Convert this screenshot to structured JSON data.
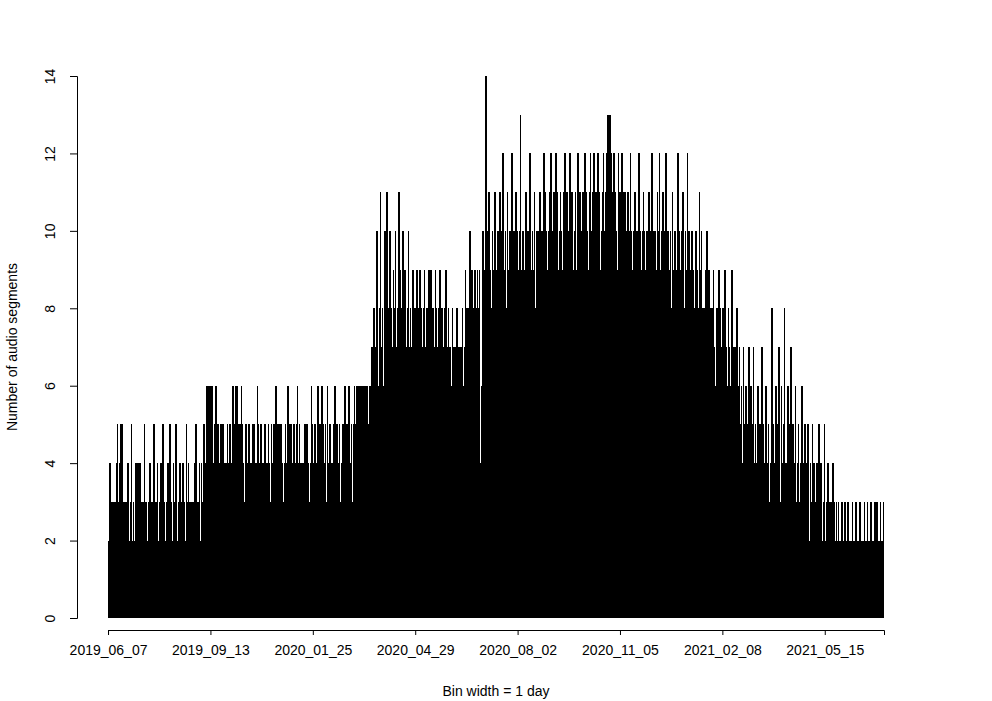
{
  "chart_data": {
    "type": "bar",
    "xlabel": "Bin width = 1 day",
    "ylabel": "Number of audio segments",
    "color": "#000000",
    "ylim": [
      0,
      14
    ],
    "yticks": [
      0,
      2,
      4,
      6,
      8,
      10,
      12,
      14
    ],
    "categories": [
      "2019_06_07",
      null,
      null,
      null,
      null,
      null,
      null,
      null,
      null,
      null,
      null,
      null,
      null,
      null,
      null,
      null,
      null,
      null,
      null,
      null,
      null,
      null,
      null,
      null,
      null,
      null,
      null,
      null,
      null,
      null,
      null,
      null,
      null,
      null,
      null,
      null,
      null,
      null,
      null,
      null,
      null,
      null,
      null,
      null,
      null,
      null,
      null,
      null,
      null,
      null,
      null,
      null,
      null,
      null,
      null,
      null,
      null,
      null,
      null,
      null,
      null,
      null,
      null,
      null,
      null,
      null,
      null,
      null,
      null,
      null,
      null,
      null,
      null,
      null,
      null,
      null,
      null,
      null,
      null,
      null,
      null,
      null,
      null,
      null,
      null,
      null,
      null,
      null,
      null,
      null,
      null,
      null,
      null,
      null,
      null,
      "2019_09_13",
      null,
      null,
      null,
      null,
      null,
      null,
      null,
      null,
      null,
      null,
      null,
      null,
      null,
      null,
      null,
      null,
      null,
      null,
      null,
      null,
      null,
      null,
      null,
      null,
      null,
      null,
      null,
      null,
      null,
      null,
      null,
      null,
      null,
      null,
      null,
      null,
      null,
      null,
      null,
      null,
      null,
      null,
      null,
      null,
      null,
      null,
      null,
      null,
      null,
      null,
      null,
      null,
      null,
      null,
      null,
      null,
      null,
      null,
      null,
      null,
      null,
      null,
      null,
      null,
      null,
      null,
      null,
      null,
      null,
      null,
      null,
      null,
      null,
      null,
      null,
      null,
      null,
      null,
      null,
      null,
      null,
      null,
      null,
      null,
      null,
      null,
      null,
      null,
      null,
      null,
      null,
      null,
      null,
      null,
      "2020_01_25",
      null,
      null,
      null,
      null,
      null,
      null,
      null,
      null,
      null,
      null,
      null,
      null,
      null,
      null,
      null,
      null,
      null,
      null,
      null,
      null,
      null,
      null,
      null,
      null,
      null,
      null,
      null,
      null,
      null,
      null,
      null,
      null,
      null,
      null,
      null,
      null,
      null,
      null,
      null,
      null,
      null,
      null,
      null,
      null,
      null,
      null,
      null,
      null,
      null,
      null,
      null,
      null,
      null,
      null,
      null,
      null,
      null,
      null,
      null,
      null,
      null,
      null,
      null,
      null,
      null,
      null,
      null,
      null,
      null,
      null,
      null,
      null,
      null,
      null,
      null,
      null,
      null,
      null,
      null,
      null,
      null,
      null,
      null,
      null,
      null,
      null,
      null,
      null,
      null,
      null,
      null,
      null,
      null,
      null,
      "2020_04_29",
      null,
      null,
      null,
      null,
      null,
      null,
      null,
      null,
      null,
      null,
      null,
      null,
      null,
      null,
      null,
      null,
      null,
      null,
      null,
      null,
      null,
      null,
      null,
      null,
      null,
      null,
      null,
      null,
      null,
      null,
      null,
      null,
      null,
      null,
      null,
      null,
      null,
      null,
      null,
      null,
      null,
      null,
      null,
      null,
      null,
      null,
      null,
      null,
      null,
      null,
      null,
      null,
      null,
      null,
      null,
      null,
      null,
      null,
      null,
      null,
      null,
      null,
      null,
      null,
      null,
      null,
      null,
      null,
      null,
      null,
      null,
      null,
      null,
      null,
      null,
      null,
      null,
      null,
      null,
      null,
      null,
      null,
      null,
      null,
      null,
      null,
      null,
      null,
      null,
      null,
      null,
      null,
      null,
      null,
      "2020_08_02",
      null,
      null,
      null,
      null,
      null,
      null,
      null,
      null,
      null,
      null,
      null,
      null,
      null,
      null,
      null,
      null,
      null,
      null,
      null,
      null,
      null,
      null,
      null,
      null,
      null,
      null,
      null,
      null,
      null,
      null,
      null,
      null,
      null,
      null,
      null,
      null,
      null,
      null,
      null,
      null,
      null,
      null,
      null,
      null,
      null,
      null,
      null,
      null,
      null,
      null,
      null,
      null,
      null,
      null,
      null,
      null,
      null,
      null,
      null,
      null,
      null,
      null,
      null,
      null,
      null,
      null,
      null,
      null,
      null,
      null,
      null,
      null,
      null,
      null,
      null,
      null,
      null,
      null,
      null,
      null,
      null,
      null,
      null,
      null,
      null,
      null,
      null,
      null,
      null,
      null,
      null,
      null,
      null,
      null,
      "2020_11_05",
      null,
      null,
      null,
      null,
      null,
      null,
      null,
      null,
      null,
      null,
      null,
      null,
      null,
      null,
      null,
      null,
      null,
      null,
      null,
      null,
      null,
      null,
      null,
      null,
      null,
      null,
      null,
      null,
      null,
      null,
      null,
      null,
      null,
      null,
      null,
      null,
      null,
      null,
      null,
      null,
      null,
      null,
      null,
      null,
      null,
      null,
      null,
      null,
      null,
      null,
      null,
      null,
      null,
      null,
      null,
      null,
      null,
      null,
      null,
      null,
      null,
      null,
      null,
      null,
      null,
      null,
      null,
      null,
      null,
      null,
      null,
      null,
      null,
      null,
      null,
      null,
      null,
      null,
      null,
      null,
      null,
      null,
      null,
      null,
      null,
      null,
      null,
      null,
      null,
      null,
      null,
      null,
      null,
      null,
      "2021_02_08",
      null,
      null,
      null,
      null,
      null,
      null,
      null,
      null,
      null,
      null,
      null,
      null,
      null,
      null,
      null,
      null,
      null,
      null,
      null,
      null,
      null,
      null,
      null,
      null,
      null,
      null,
      null,
      null,
      null,
      null,
      null,
      null,
      null,
      null,
      null,
      null,
      null,
      null,
      null,
      null,
      null,
      null,
      null,
      null,
      null,
      null,
      null,
      null,
      null,
      null,
      null,
      null,
      null,
      null,
      null,
      null,
      null,
      null,
      null,
      null,
      null,
      null,
      null,
      null,
      null,
      null,
      null,
      null,
      null,
      null,
      null,
      null,
      null,
      null,
      null,
      null,
      null,
      null,
      null,
      null,
      null,
      null,
      null,
      null,
      null,
      null,
      null,
      null,
      null,
      null,
      null,
      null,
      null,
      null,
      "2021_05_15",
      null,
      null,
      null,
      null,
      null,
      null,
      null,
      null,
      null,
      null,
      null,
      null,
      null,
      null,
      null,
      null,
      null,
      null,
      null,
      null,
      null,
      null,
      null,
      null,
      null,
      null,
      null,
      null,
      null,
      null,
      null,
      null,
      null,
      null,
      null,
      null,
      null,
      null,
      null,
      null,
      null,
      null,
      null,
      null,
      null,
      null,
      null,
      null,
      null,
      null,
      null,
      null,
      null,
      null
    ],
    "values": [
      2,
      4,
      3,
      3,
      3,
      2,
      3,
      4,
      5,
      3,
      4,
      5,
      5,
      3,
      2,
      3,
      2,
      3,
      4,
      2,
      3,
      5,
      2,
      3,
      2,
      4,
      3,
      4,
      2,
      4,
      3,
      1,
      3,
      5,
      3,
      3,
      2,
      3,
      4,
      1,
      3,
      3,
      5,
      2,
      3,
      4,
      2,
      3,
      4,
      4,
      5,
      3,
      1,
      2,
      3,
      4,
      2,
      5,
      3,
      2,
      4,
      3,
      5,
      2,
      1,
      3,
      4,
      3,
      2,
      4,
      3,
      2,
      5,
      3,
      4,
      3,
      1,
      3,
      2,
      3,
      4,
      5,
      3,
      3,
      4,
      2,
      4,
      3,
      5,
      4,
      4,
      6,
      5,
      6,
      6,
      5,
      6,
      4,
      5,
      6,
      6,
      5,
      4,
      3,
      5,
      4,
      5,
      4,
      3,
      4,
      5,
      4,
      5,
      5,
      4,
      6,
      5,
      4,
      6,
      6,
      5,
      4,
      5,
      6,
      5,
      4,
      3,
      5,
      4,
      4,
      5,
      4,
      3,
      4,
      5,
      5,
      4,
      4,
      6,
      5,
      4,
      5,
      4,
      3,
      4,
      5,
      2,
      4,
      5,
      4,
      3,
      5,
      4,
      5,
      4,
      6,
      5,
      4,
      5,
      4,
      5,
      4,
      3,
      4,
      5,
      4,
      6,
      5,
      4,
      5,
      4,
      3,
      5,
      4,
      5,
      6,
      4,
      5,
      4,
      4,
      3,
      4,
      5,
      4,
      5,
      4,
      3,
      4,
      6,
      5,
      4,
      5,
      4,
      3,
      6,
      5,
      4,
      5,
      6,
      5,
      4,
      5,
      3,
      6,
      4,
      5,
      4,
      3,
      4,
      5,
      6,
      4,
      5,
      4,
      5,
      3,
      4,
      5,
      4,
      6,
      5,
      4,
      5,
      6,
      4,
      5,
      3,
      5,
      6,
      5,
      6,
      4,
      6,
      5,
      6,
      6,
      5,
      6,
      6,
      6,
      6,
      5,
      6,
      6,
      7,
      6,
      8,
      6,
      7,
      10,
      6,
      8,
      11,
      7,
      8,
      6,
      10,
      7,
      11,
      8,
      7,
      10,
      8,
      7,
      9,
      8,
      10,
      7,
      8,
      11,
      9,
      8,
      7,
      10,
      8,
      9,
      7,
      8,
      10,
      7,
      8,
      7,
      9,
      8,
      7,
      8,
      9,
      7,
      8,
      9,
      8,
      7,
      8,
      9,
      7,
      8,
      7,
      9,
      8,
      9,
      7,
      8,
      7,
      9,
      8,
      7,
      8,
      9,
      7,
      8,
      7,
      7,
      8,
      9,
      7,
      8,
      7,
      7,
      6,
      8,
      7,
      6,
      7,
      8,
      7,
      6,
      7,
      7,
      8,
      6,
      7,
      9,
      8,
      7,
      8,
      10,
      8,
      9,
      8,
      8,
      9,
      8,
      9,
      8,
      9,
      4,
      6,
      10,
      8,
      9,
      14,
      8,
      10,
      11,
      9,
      8,
      10,
      9,
      11,
      8,
      9,
      10,
      8,
      11,
      9,
      10,
      12,
      9,
      10,
      8,
      11,
      9,
      10,
      9,
      12,
      8,
      10,
      9,
      11,
      10,
      9,
      10,
      13,
      9,
      10,
      8,
      9,
      11,
      10,
      9,
      10,
      12,
      9,
      10,
      9,
      11,
      8,
      10,
      9,
      10,
      11,
      9,
      10,
      10,
      12,
      11,
      10,
      9,
      10,
      11,
      12,
      10,
      9,
      11,
      10,
      12,
      11,
      9,
      10,
      11,
      10,
      9,
      11,
      12,
      10,
      11,
      9,
      10,
      12,
      10,
      11,
      9,
      10,
      11,
      9,
      12,
      10,
      11,
      10,
      9,
      11,
      10,
      12,
      11,
      10,
      9,
      11,
      12,
      10,
      11,
      12,
      10,
      11,
      10,
      12,
      11,
      9,
      10,
      11,
      12,
      10,
      11,
      12,
      13,
      11,
      13,
      12,
      11,
      10,
      12,
      11,
      10,
      9,
      12,
      11,
      10,
      12,
      11,
      10,
      11,
      10,
      9,
      11,
      10,
      12,
      10,
      9,
      10,
      11,
      10,
      9,
      10,
      12,
      10,
      9,
      10,
      11,
      10,
      9,
      10,
      10,
      11,
      9,
      10,
      12,
      10,
      9,
      10,
      9,
      11,
      10,
      12,
      9,
      10,
      11,
      9,
      10,
      12,
      9,
      10,
      9,
      10,
      8,
      11,
      9,
      10,
      8,
      9,
      12,
      10,
      8,
      9,
      10,
      11,
      8,
      10,
      9,
      12,
      10,
      9,
      8,
      10,
      9,
      7,
      8,
      10,
      9,
      8,
      11,
      9,
      10,
      8,
      7,
      8,
      9,
      10,
      8,
      9,
      7,
      8,
      8,
      9,
      7,
      6,
      8,
      7,
      9,
      8,
      6,
      7,
      8,
      6,
      9,
      7,
      6,
      8,
      7,
      6,
      9,
      7,
      6,
      7,
      5,
      8,
      6,
      7,
      5,
      6,
      4,
      7,
      5,
      6,
      4,
      5,
      7,
      4,
      6,
      5,
      7,
      4,
      5,
      4,
      6,
      3,
      5,
      4,
      7,
      5,
      4,
      3,
      6,
      4,
      5,
      3,
      4,
      8,
      5,
      4,
      3,
      6,
      4,
      5,
      7,
      3,
      6,
      4,
      5,
      8,
      4,
      3,
      6,
      5,
      4,
      7,
      3,
      5,
      4,
      6,
      3,
      4,
      5,
      3,
      4,
      6,
      3,
      4,
      5,
      3,
      4,
      5,
      2,
      4,
      3,
      5,
      4,
      3,
      2,
      4,
      3,
      5,
      3,
      4,
      2,
      3,
      5,
      2,
      3,
      4,
      3,
      2,
      3,
      2,
      4,
      3,
      2,
      3,
      2,
      3,
      2,
      2,
      3,
      2,
      2,
      3,
      2,
      2,
      3,
      2,
      2,
      2,
      3,
      2,
      2,
      3,
      2,
      2,
      2,
      3,
      2,
      2,
      2,
      3,
      2,
      2,
      3,
      2,
      2,
      3,
      2,
      2,
      2,
      3,
      2,
      3,
      2,
      2,
      3,
      2,
      2,
      3
    ]
  }
}
